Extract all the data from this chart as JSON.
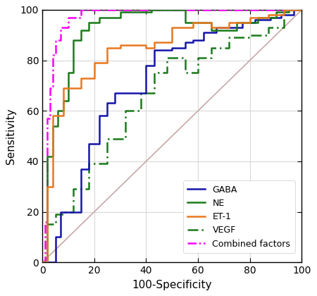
{
  "xlabel": "100-Specificity",
  "ylabel": "Sensitivity",
  "xlim": [
    0,
    100
  ],
  "ylim": [
    0,
    100
  ],
  "xticks": [
    0,
    20,
    40,
    60,
    80,
    100
  ],
  "yticks": [
    0,
    20,
    40,
    60,
    80,
    100
  ],
  "reference_line_color": "#c8a8a8",
  "gaba": {
    "color": "#1515aa",
    "x": [
      0,
      5,
      5,
      7,
      7,
      15,
      15,
      18,
      18,
      22,
      22,
      25,
      25,
      28,
      28,
      40,
      40,
      43,
      43,
      50,
      50,
      55,
      55,
      58,
      58,
      62,
      62,
      67,
      67,
      77,
      77,
      82,
      82,
      88,
      88,
      92,
      92,
      97,
      97,
      100
    ],
    "y": [
      0,
      0,
      10,
      10,
      20,
      20,
      37,
      37,
      47,
      47,
      58,
      58,
      63,
      63,
      67,
      67,
      78,
      78,
      84,
      84,
      85,
      85,
      87,
      87,
      88,
      88,
      91,
      91,
      93,
      93,
      95,
      95,
      96,
      96,
      97,
      97,
      98,
      98,
      100,
      100
    ]
  },
  "ne": {
    "color": "#1a7a1a",
    "x": [
      0,
      2,
      2,
      4,
      4,
      6,
      6,
      8,
      8,
      10,
      10,
      12,
      12,
      15,
      15,
      18,
      18,
      22,
      22,
      30,
      30,
      42,
      42,
      55,
      55,
      65,
      65,
      75,
      75,
      83,
      83,
      90,
      90,
      95,
      95,
      100
    ],
    "y": [
      0,
      0,
      42,
      42,
      54,
      54,
      60,
      60,
      64,
      64,
      75,
      75,
      88,
      88,
      92,
      92,
      95,
      95,
      97,
      97,
      99,
      99,
      100,
      100,
      95,
      95,
      92,
      92,
      95,
      95,
      97,
      97,
      99,
      99,
      100,
      100
    ]
  },
  "et1": {
    "color": "#e87820",
    "x": [
      0,
      2,
      2,
      4,
      4,
      8,
      8,
      15,
      15,
      20,
      20,
      25,
      25,
      30,
      30,
      40,
      40,
      43,
      43,
      50,
      50,
      58,
      58,
      65,
      65,
      72,
      72,
      80,
      80,
      87,
      87,
      93,
      93,
      100
    ],
    "y": [
      0,
      0,
      30,
      30,
      58,
      58,
      69,
      69,
      73,
      73,
      79,
      79,
      85,
      85,
      86,
      86,
      85,
      85,
      87,
      87,
      93,
      93,
      95,
      95,
      93,
      93,
      95,
      95,
      97,
      97,
      98,
      98,
      100,
      100
    ]
  },
  "vegf": {
    "color": "#1a7a1a",
    "x": [
      0,
      2,
      2,
      5,
      5,
      8,
      8,
      12,
      12,
      18,
      18,
      25,
      25,
      32,
      32,
      38,
      38,
      43,
      43,
      48,
      48,
      55,
      55,
      60,
      60,
      65,
      65,
      72,
      72,
      80,
      80,
      87,
      87,
      93,
      93,
      100
    ],
    "y": [
      0,
      0,
      15,
      15,
      19,
      19,
      20,
      20,
      29,
      29,
      39,
      39,
      49,
      49,
      60,
      60,
      67,
      67,
      75,
      75,
      81,
      81,
      75,
      75,
      81,
      81,
      85,
      85,
      89,
      89,
      90,
      90,
      93,
      93,
      100,
      100
    ]
  },
  "combined": {
    "color": "#ff00ff",
    "x": [
      0,
      1,
      1,
      2,
      2,
      3,
      3,
      4,
      4,
      5,
      5,
      7,
      7,
      10,
      10,
      15,
      15,
      100
    ],
    "y": [
      0,
      0,
      16,
      16,
      57,
      57,
      69,
      69,
      82,
      82,
      88,
      88,
      93,
      93,
      97,
      97,
      100,
      100
    ]
  },
  "legend_labels": [
    "GABA",
    "NE",
    "ET-1",
    "VEGF",
    "Combined factors"
  ],
  "legend_colors": [
    "#1515aa",
    "#1a7a1a",
    "#e87820",
    "#1a7a1a",
    "#ff00ff"
  ],
  "legend_linestyles": [
    "-",
    "-",
    "-",
    "-.",
    "-."
  ],
  "bg_color": "#ffffff",
  "grid_color": "#d8d8d8"
}
